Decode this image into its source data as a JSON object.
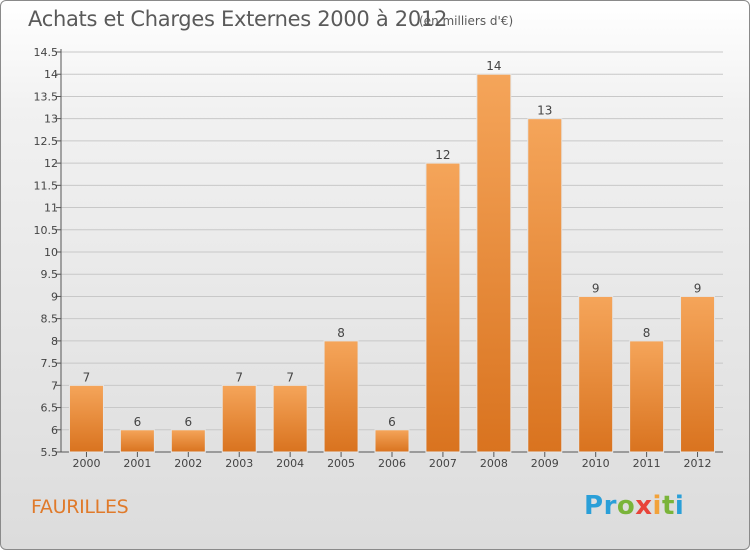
{
  "title": "Achats et Charges Externes 2000 à 2012",
  "subtitle": "(en milliers d'€)",
  "place_name": "FAURILLES",
  "logo": {
    "letters": [
      "P",
      "r",
      "o",
      "x",
      "i",
      "t",
      "i"
    ],
    "colors": [
      "#2a9fd8",
      "#2a9fd8",
      "#7ab43a",
      "#e8443a",
      "#f2a23a",
      "#7ab43a",
      "#2a9fd8"
    ]
  },
  "chart_data": {
    "type": "bar",
    "categories": [
      "2000",
      "2001",
      "2002",
      "2003",
      "2004",
      "2005",
      "2006",
      "2007",
      "2008",
      "2009",
      "2010",
      "2011",
      "2012"
    ],
    "values": [
      7,
      6,
      6,
      7,
      7,
      8,
      6,
      12,
      14,
      13,
      9,
      8,
      9
    ],
    "value_labels": [
      "7",
      "6",
      "6",
      "7",
      "7",
      "8",
      "6",
      "12",
      "14",
      "13",
      "9",
      "8",
      "9"
    ],
    "ylim": [
      5.5,
      14.5
    ],
    "yticks": [
      "5.5",
      "6",
      "6.5",
      "7",
      "7.5",
      "8",
      "8.5",
      "9",
      "9.5",
      "10",
      "10.5",
      "11",
      "11.5",
      "12",
      "12.5",
      "13",
      "13.5",
      "14",
      "14.5"
    ],
    "bar_color": "#f0a050",
    "grid": true
  }
}
